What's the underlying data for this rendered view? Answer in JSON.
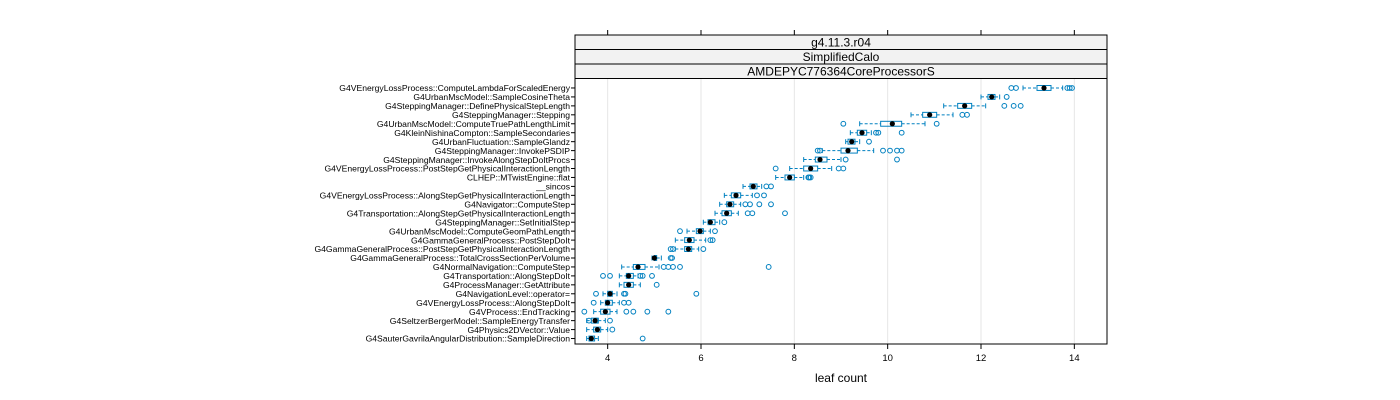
{
  "strips": [
    "g4.11.3.r04",
    "SimplifiedCalo",
    "AMDEPYC776364CoreProcessorS"
  ],
  "colors": {
    "strip_bg": "#f2f2f2",
    "box": "#0080c0",
    "median": "#000000",
    "grid": "#e6e6e6",
    "frame": "#000000"
  },
  "chart_data": {
    "type": "boxplot",
    "xlabel": "leaf count",
    "xlim": [
      3.3,
      14.7
    ],
    "xticks": [
      4,
      6,
      8,
      10,
      12,
      14
    ],
    "grid": "vertical",
    "categories": [
      "G4VEnergyLossProcess::ComputeLambdaForScaledEnergy",
      "G4UrbanMscModel::SampleCosineTheta",
      "G4SteppingManager::DefinePhysicalStepLength",
      "G4SteppingManager::Stepping",
      "G4UrbanMscModel::ComputeTruePathLengthLimit",
      "G4KleinNishinaCompton::SampleSecondaries",
      "G4UrbanFluctuation::SampleGlandz",
      "G4SteppingManager::InvokePSDIP",
      "G4SteppingManager::InvokeAlongStepDoItProcs",
      "G4VEnergyLossProcess::PostStepGetPhysicalInteractionLength",
      "CLHEP::MTwistEngine::flat",
      "__sincos",
      "G4VEnergyLossProcess::AlongStepGetPhysicalInteractionLength",
      "G4Navigator::ComputeStep",
      "G4Transportation::AlongStepGetPhysicalInteractionLength",
      "G4SteppingManager::SetInitialStep",
      "G4UrbanMscModel::ComputeGeomPathLength",
      "G4GammaGeneralProcess::PostStepDoIt",
      "G4GammaGeneralProcess::PostStepGetPhysicalInteractionLength",
      "G4GammaGeneralProcess::TotalCrossSectionPerVolume",
      "G4NormalNavigation::ComputeStep",
      "G4Transportation::AlongStepDoIt",
      "G4ProcessManager::GetAttribute",
      "G4NavigationLevel::operator=",
      "G4VEnergyLossProcess::AlongStepDoIt",
      "G4VProcess::EndTracking",
      "G4SeltzerBergerModel::SampleEnergyTransfer",
      "G4Physics2DVector::Value",
      "G4SauterGavrilaAngularDistribution::SampleDirection"
    ],
    "boxes": [
      {
        "wlo": 12.9,
        "q1": 13.2,
        "med": 13.35,
        "q3": 13.5,
        "whi": 13.75,
        "out": [
          12.65,
          12.75,
          13.85,
          13.9,
          13.95
        ]
      },
      {
        "wlo": 12.0,
        "q1": 12.15,
        "med": 12.23,
        "q3": 12.3,
        "whi": 12.4,
        "out": [
          12.55
        ]
      },
      {
        "wlo": 11.2,
        "q1": 11.5,
        "med": 11.65,
        "q3": 11.8,
        "whi": 12.1,
        "out": [
          12.5,
          12.7,
          12.85
        ]
      },
      {
        "wlo": 10.5,
        "q1": 10.75,
        "med": 10.9,
        "q3": 11.05,
        "whi": 11.4,
        "out": [
          11.6,
          11.7
        ]
      },
      {
        "wlo": 9.4,
        "q1": 9.85,
        "med": 10.1,
        "q3": 10.3,
        "whi": 10.8,
        "out": [
          9.05,
          11.05
        ]
      },
      {
        "wlo": 9.2,
        "q1": 9.35,
        "med": 9.45,
        "q3": 9.55,
        "whi": 9.65,
        "out": [
          9.75,
          9.8,
          10.3
        ]
      },
      {
        "wlo": 9.1,
        "q1": 9.15,
        "med": 9.23,
        "q3": 9.3,
        "whi": 9.4,
        "out": [
          9.6
        ]
      },
      {
        "wlo": 8.6,
        "q1": 9.0,
        "med": 9.15,
        "q3": 9.35,
        "whi": 9.7,
        "out": [
          8.5,
          8.55,
          9.9,
          10.05,
          10.2,
          10.3
        ]
      },
      {
        "wlo": 8.2,
        "q1": 8.45,
        "med": 8.55,
        "q3": 8.7,
        "whi": 9.0,
        "out": [
          9.1,
          10.2
        ]
      },
      {
        "wlo": 7.9,
        "q1": 8.2,
        "med": 8.35,
        "q3": 8.5,
        "whi": 8.8,
        "out": [
          7.6,
          8.95,
          9.05
        ]
      },
      {
        "wlo": 7.6,
        "q1": 7.8,
        "med": 7.9,
        "q3": 8.0,
        "whi": 8.2,
        "out": [
          8.3,
          8.32,
          8.35
        ]
      },
      {
        "wlo": 6.9,
        "q1": 7.05,
        "med": 7.12,
        "q3": 7.2,
        "whi": 7.3,
        "out": [
          7.4,
          7.5
        ]
      },
      {
        "wlo": 6.5,
        "q1": 6.65,
        "med": 6.75,
        "q3": 6.85,
        "whi": 7.1,
        "out": [
          7.2,
          7.35
        ]
      },
      {
        "wlo": 6.4,
        "q1": 6.55,
        "med": 6.62,
        "q3": 6.7,
        "whi": 6.85,
        "out": [
          6.95,
          7.05,
          7.25,
          7.5
        ]
      },
      {
        "wlo": 6.3,
        "q1": 6.45,
        "med": 6.55,
        "q3": 6.65,
        "whi": 6.8,
        "out": [
          7.0,
          7.1,
          7.8
        ]
      },
      {
        "wlo": 6.05,
        "q1": 6.15,
        "med": 6.2,
        "q3": 6.3,
        "whi": 6.4,
        "out": [
          6.5
        ]
      },
      {
        "wlo": 5.7,
        "q1": 5.9,
        "med": 5.98,
        "q3": 6.05,
        "whi": 6.2,
        "out": [
          5.55,
          6.3
        ]
      },
      {
        "wlo": 5.45,
        "q1": 5.65,
        "med": 5.75,
        "q3": 5.85,
        "whi": 6.1,
        "out": [
          6.2,
          6.25
        ]
      },
      {
        "wlo": 5.45,
        "q1": 5.65,
        "med": 5.73,
        "q3": 5.8,
        "whi": 5.95,
        "out": [
          5.35,
          5.4,
          6.05
        ]
      },
      {
        "wlo": 4.95,
        "q1": 5.0,
        "med": 5.0,
        "q3": 5.05,
        "whi": 5.15,
        "out": [
          5.35,
          5.38
        ]
      },
      {
        "wlo": 4.3,
        "q1": 4.55,
        "med": 4.65,
        "q3": 4.8,
        "whi": 5.1,
        "out": [
          5.2,
          5.3,
          5.4,
          5.55,
          7.45
        ]
      },
      {
        "wlo": 4.25,
        "q1": 4.4,
        "med": 4.45,
        "q3": 4.55,
        "whi": 4.65,
        "out": [
          3.9,
          4.05,
          4.7,
          4.75,
          4.95
        ]
      },
      {
        "wlo": 4.25,
        "q1": 4.35,
        "med": 4.45,
        "q3": 4.55,
        "whi": 4.7,
        "out": [
          5.05
        ]
      },
      {
        "wlo": 3.9,
        "q1": 4.0,
        "med": 4.05,
        "q3": 4.1,
        "whi": 4.2,
        "out": [
          3.75,
          4.35,
          4.38,
          5.9
        ]
      },
      {
        "wlo": 3.85,
        "q1": 3.95,
        "med": 4.0,
        "q3": 4.1,
        "whi": 4.25,
        "out": [
          3.7,
          4.35,
          4.45
        ]
      },
      {
        "wlo": 3.7,
        "q1": 3.85,
        "med": 3.95,
        "q3": 4.05,
        "whi": 4.2,
        "out": [
          3.5,
          4.4,
          4.55,
          4.85,
          5.3
        ]
      },
      {
        "wlo": 3.55,
        "q1": 3.65,
        "med": 3.73,
        "q3": 3.8,
        "whi": 3.95,
        "out": [
          3.6,
          3.75,
          4.05
        ]
      },
      {
        "wlo": 3.55,
        "q1": 3.7,
        "med": 3.78,
        "q3": 3.85,
        "whi": 4.0,
        "out": [
          4.1
        ]
      },
      {
        "wlo": 3.55,
        "q1": 3.6,
        "med": 3.65,
        "q3": 3.72,
        "whi": 3.8,
        "out": [
          4.75
        ]
      }
    ]
  }
}
